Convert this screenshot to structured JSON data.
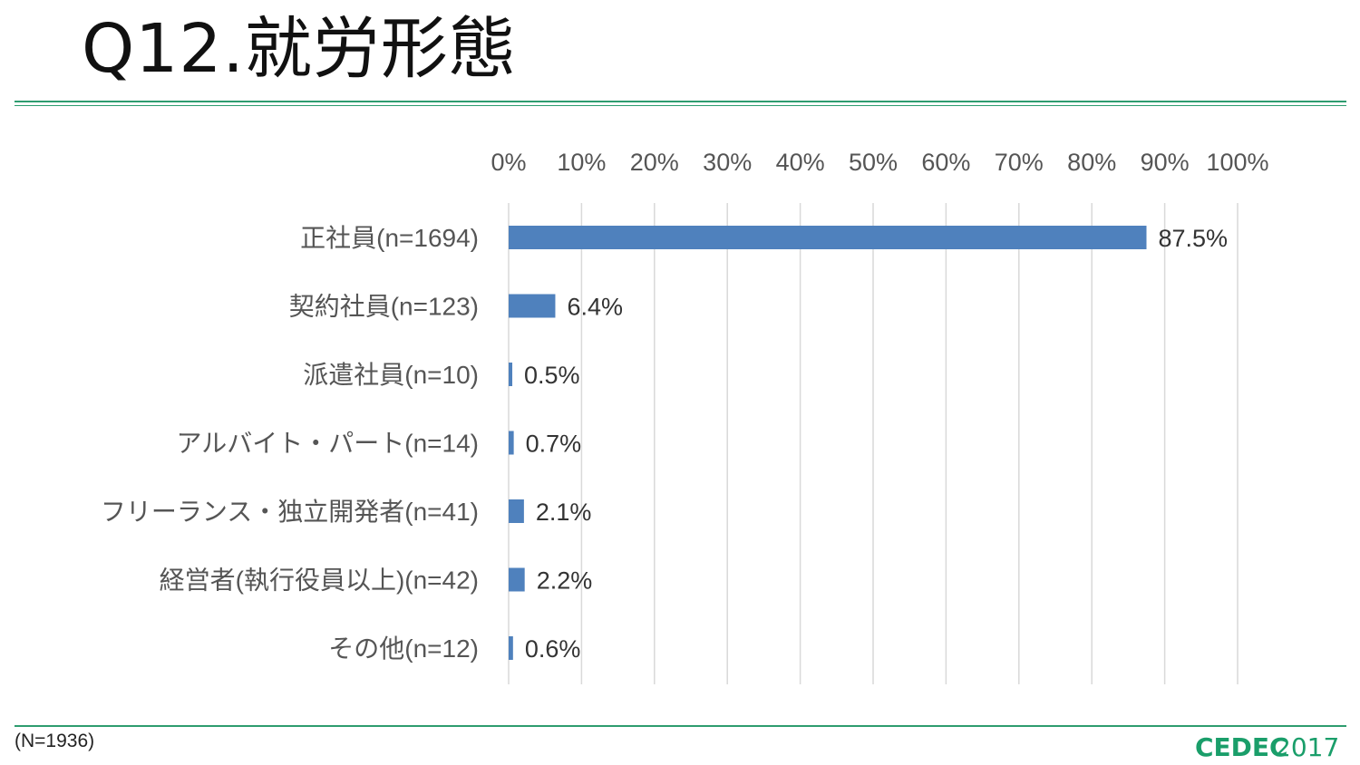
{
  "slide": {
    "title": "Q12.就労形態",
    "footnote": "(N=1936)",
    "logo_text_bold": "CEDEC",
    "logo_text_year": "2017"
  },
  "colors": {
    "bar": "#4f81bd",
    "rule": "#2e9c6f",
    "grid": "#d9d9d9",
    "logo_green": "#1a9e6a"
  },
  "chart_data": {
    "type": "bar",
    "orientation": "horizontal",
    "axis_position": "top",
    "xlim": [
      0,
      100
    ],
    "tick_labels": [
      "0%",
      "10%",
      "20%",
      "30%",
      "40%",
      "50%",
      "60%",
      "70%",
      "80%",
      "90%",
      "100%"
    ],
    "grid": true,
    "categories": [
      "正社員(n=1694)",
      "契約社員(n=123)",
      "派遣社員(n=10)",
      "アルバイト・パート(n=14)",
      "フリーランス・独立開発者(n=41)",
      "経営者(執行役員以上)(n=42)",
      "その他(n=12)"
    ],
    "values": [
      87.5,
      6.4,
      0.5,
      0.7,
      2.1,
      2.2,
      0.6
    ],
    "data_labels": [
      "87.5%",
      "6.4%",
      "0.5%",
      "0.7%",
      "2.1%",
      "2.2%",
      "0.6%"
    ]
  }
}
